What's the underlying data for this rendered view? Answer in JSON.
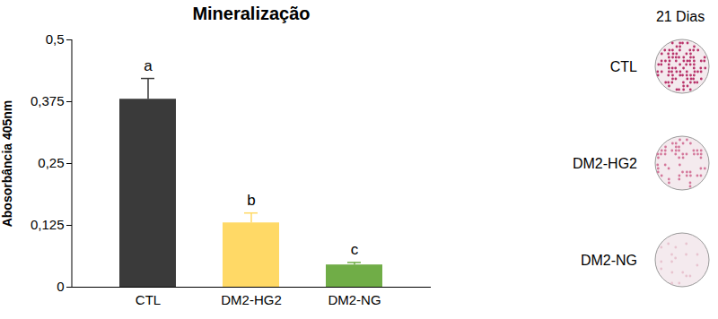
{
  "chart_data": {
    "type": "bar",
    "title": "Mineralização",
    "y_label": "Abosorbância 405nm",
    "categories": [
      "CTL",
      "DM2-HG2",
      "DM2-NG"
    ],
    "values": [
      0.38,
      0.13,
      0.045
    ],
    "error": [
      0.042,
      0.02,
      0.005
    ],
    "annotations": [
      "a",
      "b",
      "c"
    ],
    "colors": [
      "#3a3a3a",
      "#ffd966",
      "#70ad47"
    ],
    "ylim": [
      0,
      0.5
    ],
    "yticks": [
      0,
      {
        "value": 0.125,
        "label": "0,125"
      },
      {
        "value": 0.25,
        "label": "0,25"
      },
      {
        "value": 0.375,
        "label": "0,375"
      },
      {
        "value": 0.5,
        "label": "0,5"
      }
    ],
    "grid": false,
    "image_panel": {
      "title": "21 Dias",
      "labels": [
        "CTL",
        "DM2-HG2",
        "DM2-NG"
      ]
    }
  }
}
